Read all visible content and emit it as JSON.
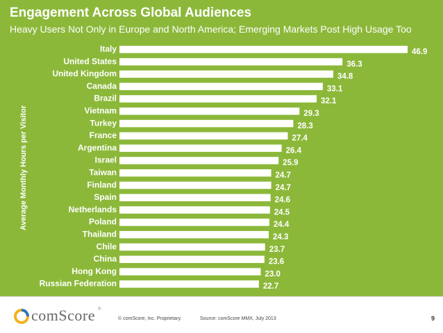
{
  "slide": {
    "title": "Engagement Across Global Audiences",
    "subtitle": "Heavy Users Not Only in Europe and  North America; Emerging Markets Post High Usage Too"
  },
  "chart_data": {
    "type": "bar",
    "orientation": "horizontal",
    "title": "",
    "xlabel": "",
    "ylabel": "Average Monthly  Hours per Visitor",
    "xlim": [
      0,
      46.9
    ],
    "grid": false,
    "categories": [
      "Italy",
      "United States",
      "United Kingdom",
      "Canada",
      "Brazil",
      "Vietnam",
      "Turkey",
      "France",
      "Argentina",
      "Israel",
      "Taiwan",
      "Finland",
      "Spain",
      "Netherlands",
      "Poland",
      "Thailand",
      "Chile",
      "China",
      "Hong Kong",
      "Russian Federation"
    ],
    "values": [
      46.9,
      36.3,
      34.8,
      33.1,
      32.1,
      29.3,
      28.3,
      27.4,
      26.4,
      25.9,
      24.7,
      24.7,
      24.6,
      24.5,
      24.4,
      24.3,
      23.7,
      23.6,
      23.0,
      22.7
    ],
    "value_labels": [
      "46.9",
      "36.3",
      "34.8",
      "33.1",
      "32.1",
      "29.3",
      "28.3",
      "27.4",
      "26.4",
      "25.9",
      "24.7",
      "24.7",
      "24.6",
      "24.5",
      "24.4",
      "24.3",
      "23.7",
      "23.6",
      "23.0",
      "22.7"
    ]
  },
  "footer": {
    "logo_text": "comScore",
    "logo_tm": "®",
    "copyright": "© comScore, Inc.    Proprietary.",
    "source": "Source: comScore MMX, July 2013",
    "page_number": "9"
  },
  "colors": {
    "background": "#8cb83a",
    "bar": "#ffffff",
    "logo_yellow": "#f2b21c",
    "logo_blue": "#2f72b8"
  }
}
